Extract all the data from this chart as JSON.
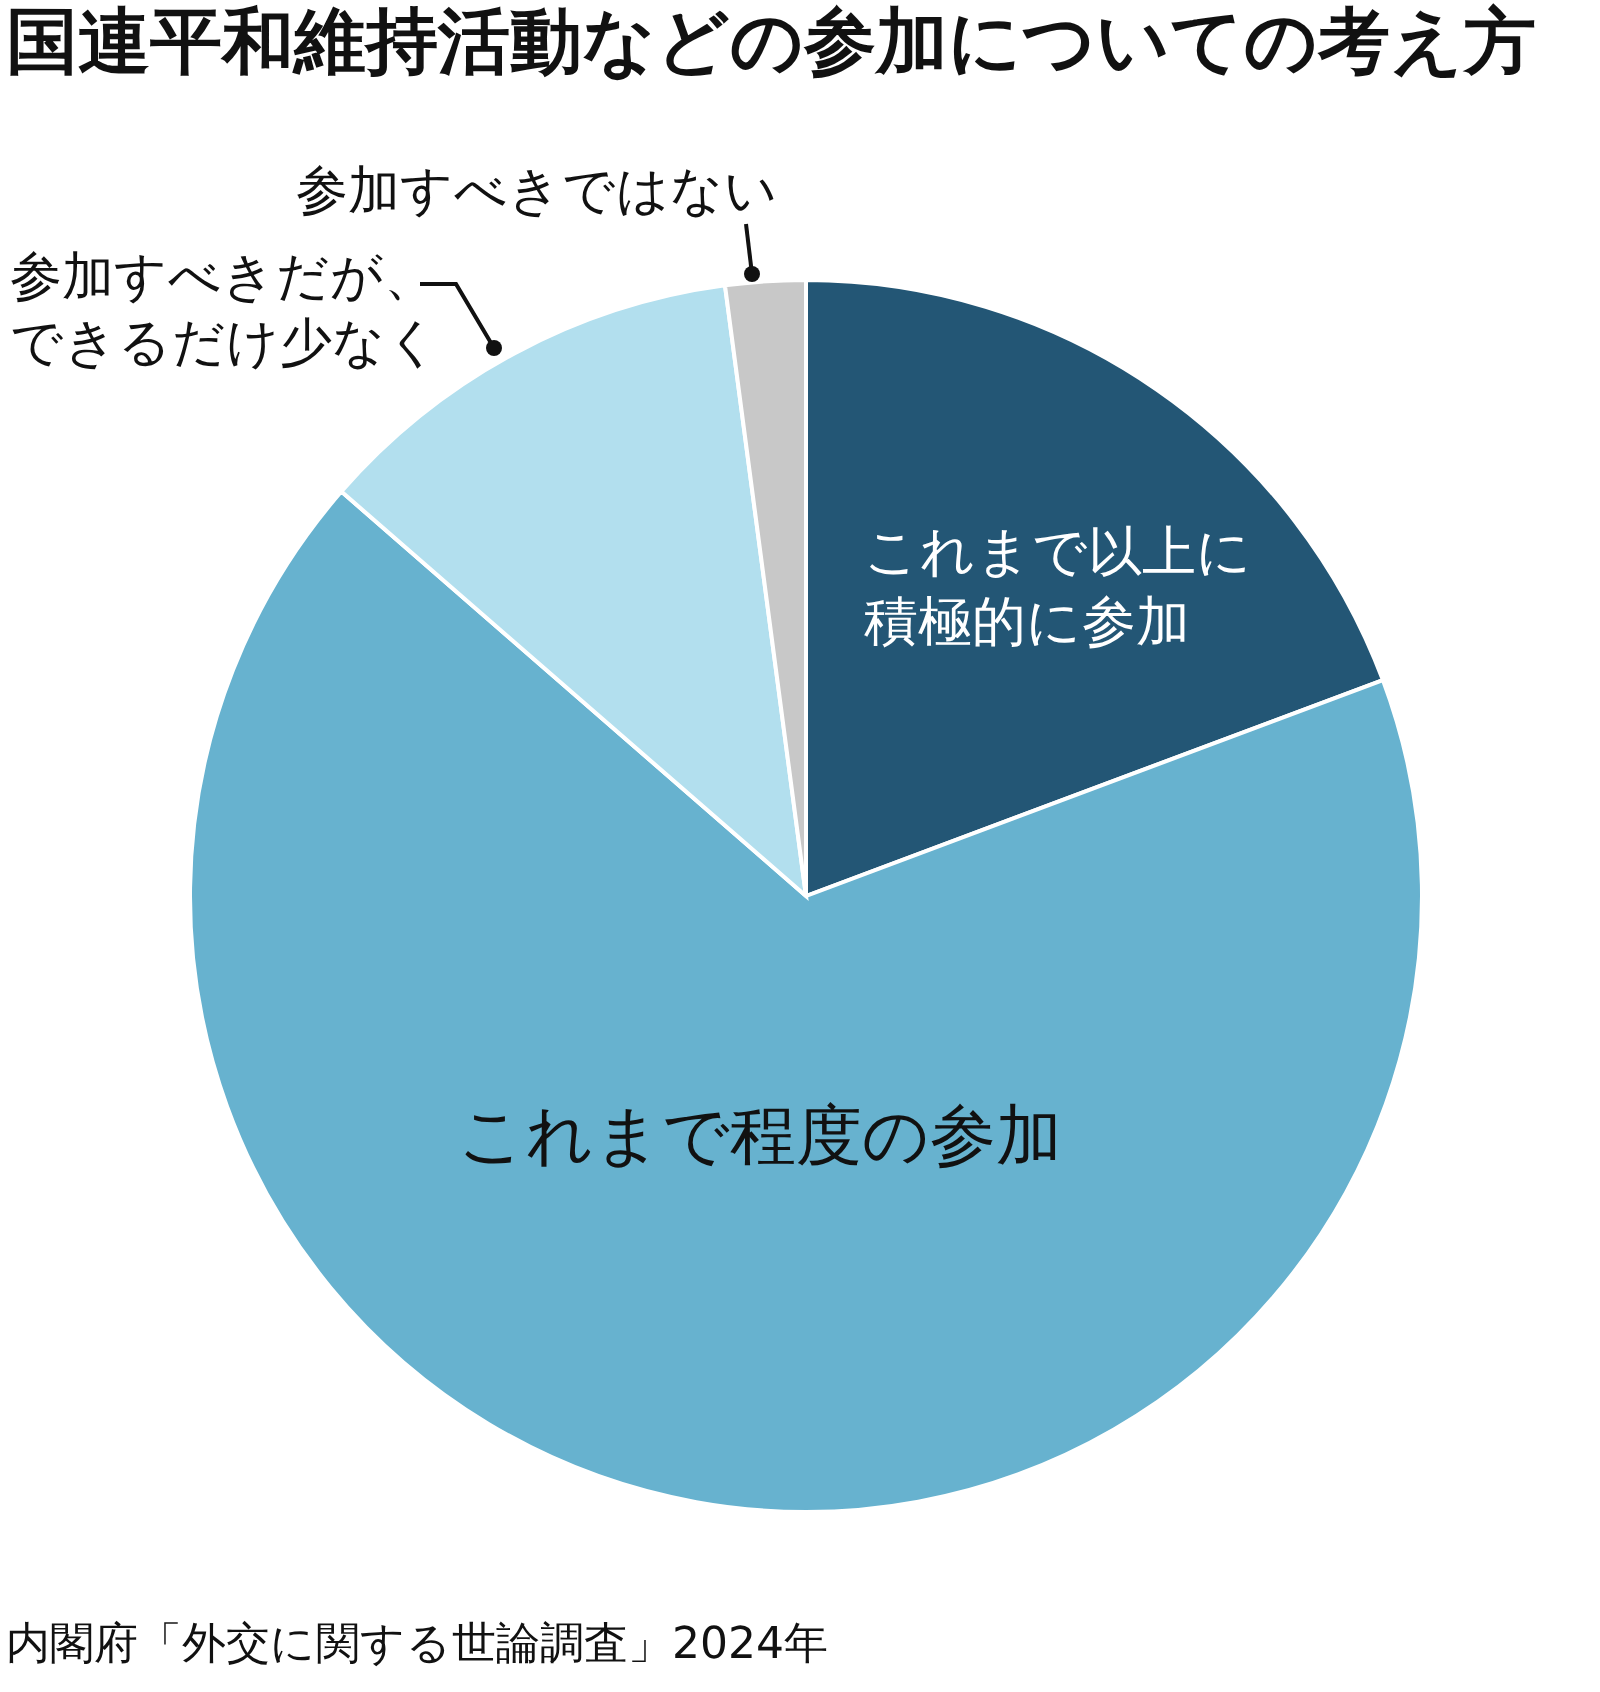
{
  "chart_data": {
    "type": "pie",
    "title": "国連平和維持活動などの参加についての考え方",
    "categories": [
      "これまで以上に積極的に参加",
      "これまで程度の参加",
      "参加すべきだが、できるだけ少なく",
      "参加すべきではない"
    ],
    "values": [
      19.3,
      67.1,
      11.5,
      2.1
    ],
    "colors": [
      "#235675",
      "#67b2cf",
      "#b2dfee",
      "#c8c8c8"
    ],
    "annotations": [
      "内閣府「外交に関する世論調査」2024年"
    ]
  }
}
